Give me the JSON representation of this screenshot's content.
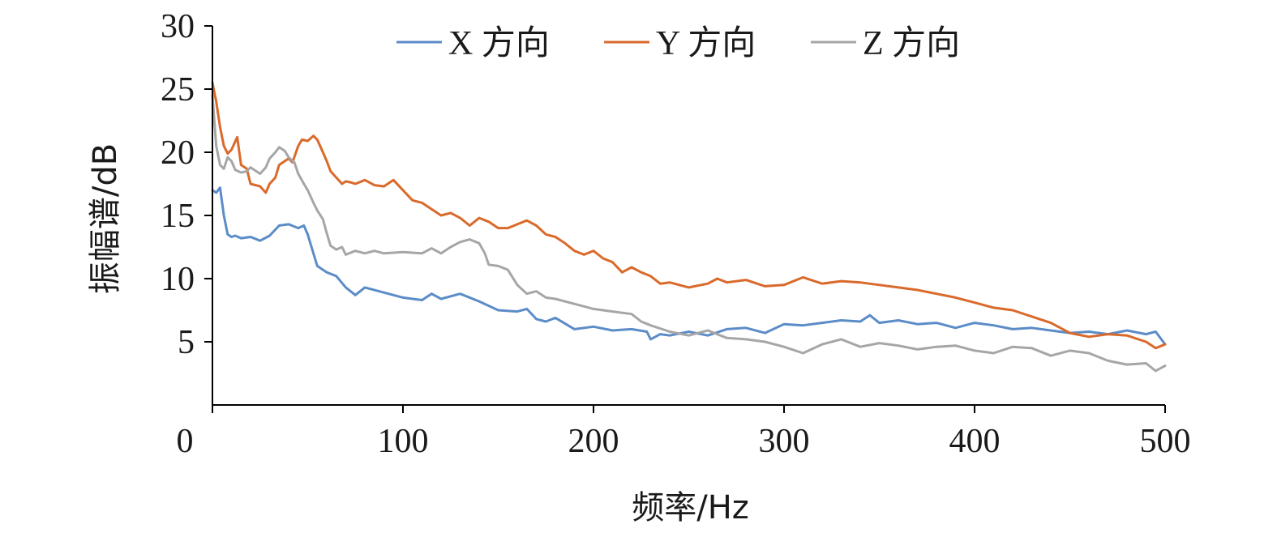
{
  "chart_data": {
    "type": "line",
    "title": "",
    "xlabel": "频率/Hz",
    "ylabel": "振幅谱/dB",
    "xlim": [
      0,
      500
    ],
    "ylim": [
      0,
      30
    ],
    "xticks": [
      0,
      100,
      200,
      300,
      400,
      500
    ],
    "xtick_labels": [
      "0",
      "100",
      "200",
      "300",
      "400",
      "500"
    ],
    "yticks": [
      5,
      10,
      15,
      20,
      25,
      30
    ],
    "ytick_labels": [
      "5",
      "10",
      "15",
      "20",
      "25",
      "30"
    ],
    "grid": false,
    "legend_position": "top-center",
    "series": [
      {
        "name": "X 方向",
        "color": "#5b8cc8",
        "x": [
          0,
          2,
          4,
          6,
          8,
          10,
          12,
          15,
          20,
          25,
          30,
          35,
          40,
          45,
          48,
          50,
          52,
          55,
          60,
          65,
          70,
          75,
          80,
          90,
          100,
          110,
          115,
          120,
          130,
          140,
          150,
          160,
          165,
          170,
          175,
          180,
          190,
          200,
          210,
          220,
          228,
          230,
          235,
          240,
          250,
          260,
          270,
          280,
          290,
          300,
          310,
          320,
          330,
          340,
          345,
          350,
          360,
          370,
          380,
          390,
          400,
          410,
          420,
          430,
          440,
          450,
          460,
          470,
          480,
          490,
          495,
          500
        ],
        "y": [
          17.0,
          16.8,
          17.2,
          15.0,
          13.5,
          13.3,
          13.4,
          13.2,
          13.3,
          13.0,
          13.4,
          14.2,
          14.3,
          14.0,
          14.2,
          13.5,
          12.5,
          11.0,
          10.5,
          10.2,
          9.3,
          8.7,
          9.3,
          8.9,
          8.5,
          8.3,
          8.8,
          8.4,
          8.8,
          8.2,
          7.5,
          7.4,
          7.6,
          6.8,
          6.6,
          6.9,
          6.0,
          6.2,
          5.9,
          6.0,
          5.8,
          5.2,
          5.6,
          5.5,
          5.8,
          5.5,
          6.0,
          6.1,
          5.7,
          6.4,
          6.3,
          6.5,
          6.7,
          6.6,
          7.1,
          6.5,
          6.7,
          6.4,
          6.5,
          6.1,
          6.5,
          6.3,
          6.0,
          6.1,
          5.9,
          5.7,
          5.8,
          5.6,
          5.9,
          5.6,
          5.8,
          4.8
        ]
      },
      {
        "name": "Y 方向",
        "color": "#d96a2b",
        "x": [
          0,
          2,
          4,
          6,
          8,
          10,
          13,
          15,
          18,
          20,
          25,
          28,
          30,
          33,
          35,
          38,
          40,
          42,
          45,
          47,
          50,
          53,
          55,
          58,
          60,
          62,
          65,
          68,
          70,
          73,
          75,
          80,
          85,
          90,
          95,
          100,
          105,
          110,
          115,
          120,
          125,
          130,
          135,
          140,
          145,
          150,
          155,
          160,
          165,
          170,
          175,
          180,
          185,
          190,
          195,
          200,
          205,
          210,
          215,
          220,
          225,
          230,
          235,
          240,
          250,
          260,
          265,
          270,
          280,
          290,
          300,
          310,
          320,
          330,
          340,
          350,
          360,
          370,
          380,
          390,
          400,
          410,
          420,
          430,
          440,
          450,
          460,
          470,
          480,
          490,
          495,
          500
        ],
        "y": [
          25.5,
          24.0,
          22.0,
          20.5,
          19.9,
          20.2,
          21.2,
          19.0,
          18.7,
          17.5,
          17.3,
          16.8,
          17.5,
          18.0,
          19.0,
          19.3,
          19.5,
          19.2,
          20.5,
          21.0,
          20.9,
          21.3,
          21.0,
          20.0,
          19.3,
          18.5,
          18.0,
          17.5,
          17.7,
          17.6,
          17.5,
          17.8,
          17.4,
          17.3,
          17.8,
          17.0,
          16.2,
          16.0,
          15.5,
          15.0,
          15.2,
          14.8,
          14.2,
          14.8,
          14.5,
          14.0,
          14.0,
          14.3,
          14.6,
          14.2,
          13.5,
          13.3,
          12.8,
          12.2,
          11.9,
          12.2,
          11.6,
          11.3,
          10.5,
          10.9,
          10.5,
          10.2,
          9.6,
          9.7,
          9.3,
          9.6,
          10.0,
          9.7,
          9.9,
          9.4,
          9.5,
          10.1,
          9.6,
          9.8,
          9.7,
          9.5,
          9.3,
          9.1,
          8.8,
          8.5,
          8.1,
          7.7,
          7.5,
          7.0,
          6.5,
          5.7,
          5.4,
          5.6,
          5.5,
          5.0,
          4.5,
          4.8
        ]
      },
      {
        "name": "Z 方向",
        "color": "#a6a6a6",
        "x": [
          0,
          2,
          4,
          6,
          8,
          10,
          12,
          15,
          18,
          20,
          25,
          28,
          30,
          33,
          35,
          38,
          40,
          43,
          45,
          48,
          50,
          53,
          55,
          58,
          60,
          62,
          65,
          68,
          70,
          75,
          80,
          85,
          90,
          100,
          110,
          115,
          120,
          125,
          130,
          135,
          140,
          143,
          145,
          150,
          155,
          160,
          165,
          170,
          175,
          180,
          190,
          200,
          210,
          220,
          225,
          230,
          240,
          250,
          260,
          270,
          280,
          290,
          300,
          310,
          320,
          330,
          340,
          350,
          360,
          370,
          380,
          390,
          400,
          410,
          420,
          430,
          440,
          450,
          460,
          470,
          480,
          490,
          495,
          500
        ],
        "y": [
          24.5,
          20.5,
          19.0,
          18.7,
          19.6,
          19.3,
          18.6,
          18.4,
          18.5,
          18.8,
          18.3,
          18.8,
          19.5,
          20.0,
          20.4,
          20.1,
          19.6,
          19.2,
          18.3,
          17.5,
          17.0,
          16.0,
          15.4,
          14.7,
          13.6,
          12.6,
          12.3,
          12.5,
          11.9,
          12.2,
          12.0,
          12.2,
          12.0,
          12.1,
          12.0,
          12.4,
          12.0,
          12.5,
          12.9,
          13.1,
          12.8,
          12.0,
          11.1,
          11.0,
          10.7,
          9.5,
          8.8,
          9.0,
          8.5,
          8.4,
          8.0,
          7.6,
          7.4,
          7.2,
          6.6,
          6.3,
          5.8,
          5.5,
          5.9,
          5.3,
          5.2,
          5.0,
          4.6,
          4.1,
          4.8,
          5.2,
          4.6,
          4.9,
          4.7,
          4.4,
          4.6,
          4.7,
          4.3,
          4.1,
          4.6,
          4.5,
          3.9,
          4.3,
          4.1,
          3.5,
          3.2,
          3.3,
          2.7,
          3.1
        ]
      }
    ]
  }
}
